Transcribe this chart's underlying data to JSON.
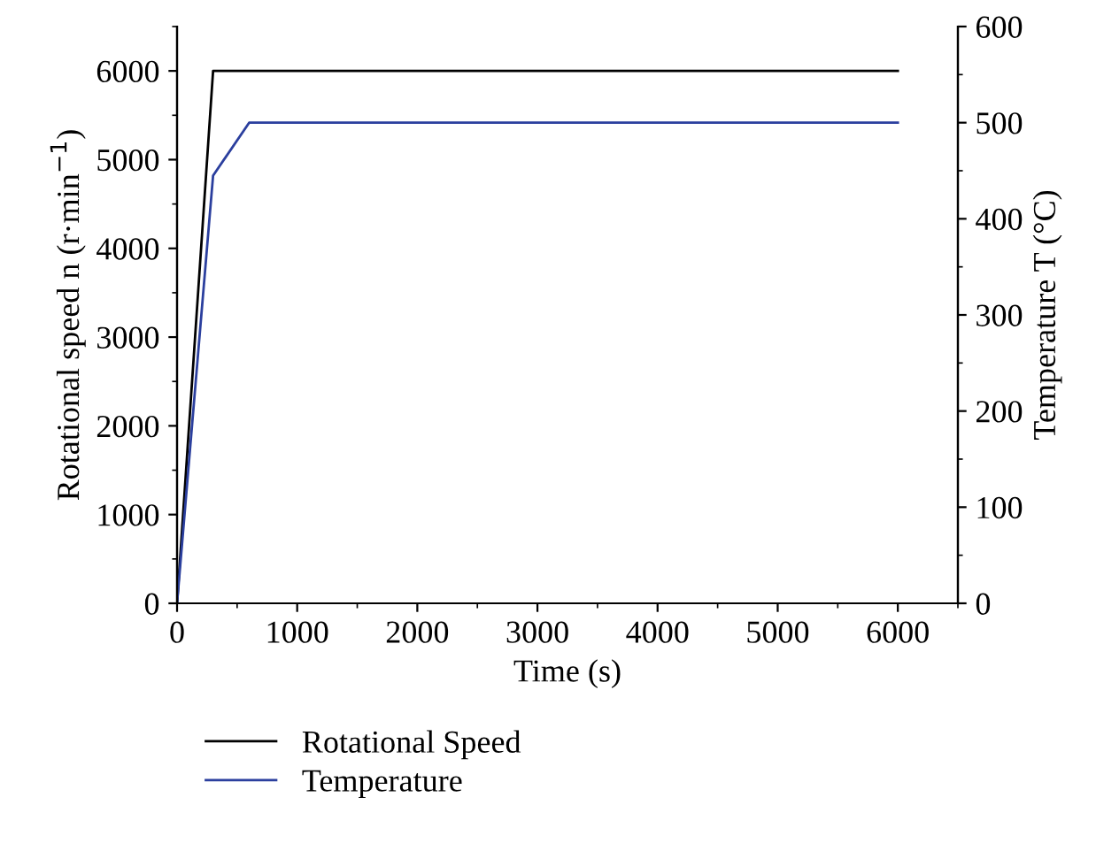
{
  "chart_data": {
    "type": "line",
    "xlabel": "Time (s)",
    "ylabel": "Rotational speed n (r·min$^{−1}$)",
    "y2label": "Temperature T (°C)",
    "series": [
      {
        "name": "Rotational Speed",
        "color": "#000000",
        "x": [
          0,
          300,
          6000
        ],
        "values": [
          0,
          6000,
          6000
        ]
      },
      {
        "name": "Temperature",
        "color": "#2b3f9e",
        "x": [
          0,
          300,
          600,
          6000
        ],
        "values": [
          0,
          445,
          500,
          500
        ],
        "axis": "y2"
      }
    ],
    "xlim": [
      0,
      6500
    ],
    "xticks": [
      0,
      1000,
      2000,
      3000,
      4000,
      5000,
      6000
    ],
    "ylim": [
      0,
      6500
    ],
    "yticks": [
      0,
      1000,
      2000,
      3000,
      4000,
      5000,
      6000
    ],
    "y2lim": [
      0,
      600
    ],
    "y2ticks": [
      0,
      100,
      200,
      300,
      400,
      500,
      600
    ],
    "grid": false,
    "legend": "bottom",
    "marker": "none",
    "line_style": "solid"
  }
}
